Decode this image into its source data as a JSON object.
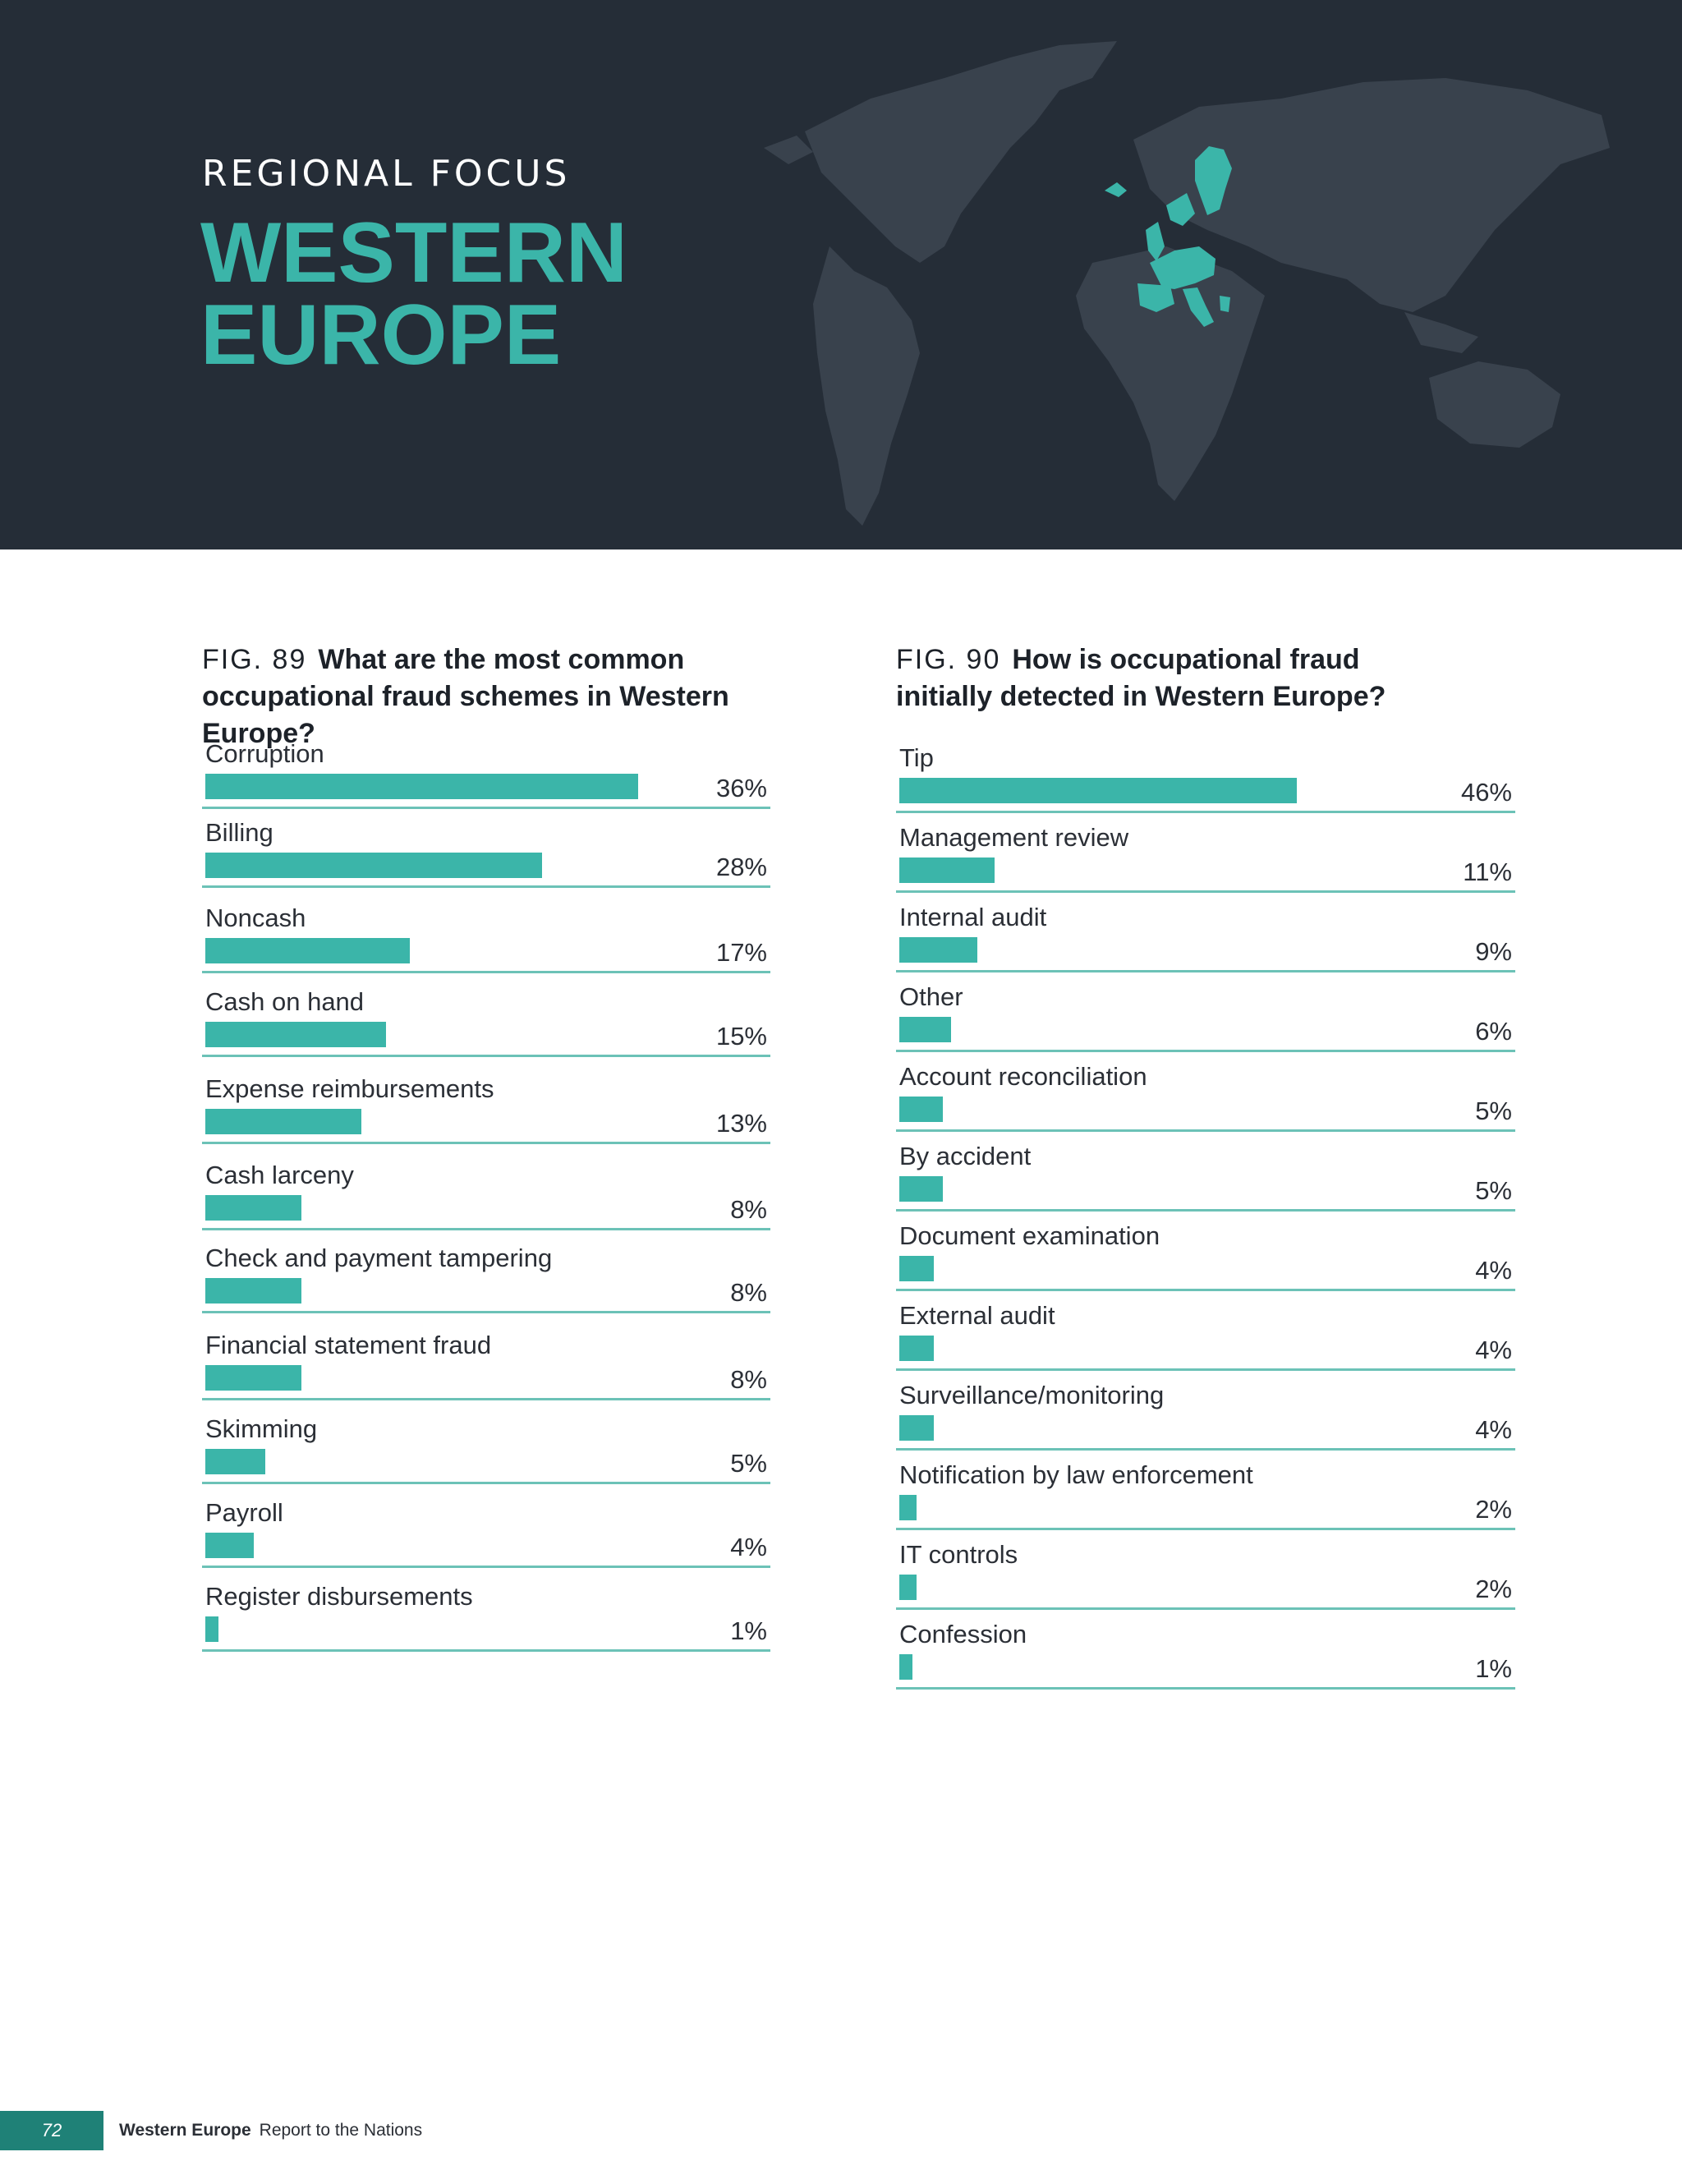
{
  "header": {
    "kicker": "REGIONAL FOCUS",
    "title_line1": "WESTERN",
    "title_line2": "EUROPE"
  },
  "colors": {
    "hero_bg": "#252d37",
    "land": "#39424d",
    "accent": "#3bb5a9",
    "rule": "#6cc2b7",
    "footer_tab": "#1f8177"
  },
  "chart_data": [
    {
      "type": "bar",
      "orientation": "horizontal",
      "fig_number": "FIG. 89",
      "title": "What are the most common occupational fraud schemes in Western Europe?",
      "categories": [
        "Corruption",
        "Billing",
        "Noncash",
        "Cash on hand",
        "Expense reimbursements",
        "Cash larceny",
        "Check and payment tampering",
        "Financial statement fraud",
        "Skimming",
        "Payroll",
        "Register disbursements"
      ],
      "values": [
        36,
        28,
        17,
        15,
        13,
        8,
        8,
        8,
        5,
        4,
        1
      ],
      "value_labels": [
        "36%",
        "28%",
        "17%",
        "15%",
        "13%",
        "8%",
        "8%",
        "8%",
        "5%",
        "4%",
        "1%"
      ],
      "unit": "%",
      "xlim": [
        0,
        41
      ]
    },
    {
      "type": "bar",
      "orientation": "horizontal",
      "fig_number": "FIG. 90",
      "title": "How is occupational fraud initially detected in Western Europe?",
      "categories": [
        "Tip",
        "Management review",
        "Internal audit",
        "Other",
        "Account reconciliation",
        "By accident",
        "Document examination",
        "External audit",
        "Surveillance/monitoring",
        "Notification by law enforcement",
        "IT controls",
        "Confession"
      ],
      "values": [
        46,
        11,
        9,
        6,
        5,
        5,
        4,
        4,
        4,
        2,
        2,
        1
      ],
      "value_labels": [
        "46%",
        "11%",
        "9%",
        "6%",
        "5%",
        "5%",
        "4%",
        "4%",
        "4%",
        "2%",
        "2%",
        "1%"
      ],
      "unit": "%",
      "xlim": [
        0,
        57
      ]
    }
  ],
  "footer": {
    "page_number": "72",
    "section": "Western Europe",
    "publication": "Report to the Nations"
  }
}
